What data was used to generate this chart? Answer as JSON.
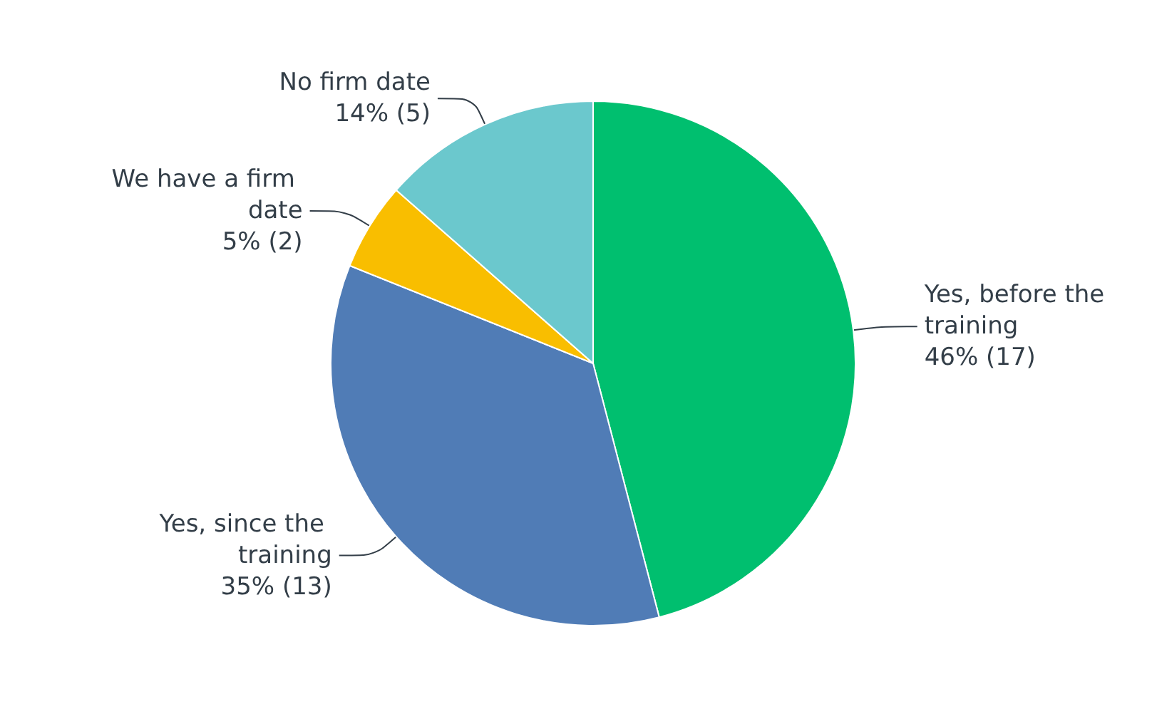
{
  "chart_data": {
    "type": "pie",
    "categories": [
      "Yes, before the training",
      "Yes, since the training",
      "We have a firm date",
      "No firm date"
    ],
    "values": [
      17,
      13,
      2,
      5
    ],
    "colors": [
      "#00bf6f",
      "#507cb6",
      "#f9be00",
      "#6bc8cd"
    ],
    "value_labels": [
      "46% (17)",
      "35% (13)",
      "5% (2)",
      "14% (5)"
    ]
  }
}
